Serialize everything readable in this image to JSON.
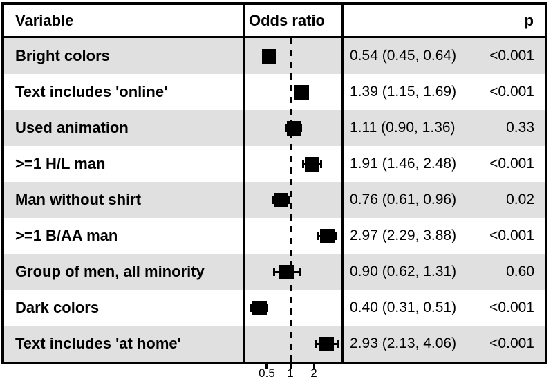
{
  "chart_data": {
    "type": "forest",
    "scale": "log10",
    "columns": {
      "variable": "Variable",
      "plot": "Odds ratio",
      "p": "p"
    },
    "reference_line": 1,
    "x_ticks": [
      "0.5",
      "1",
      "2"
    ],
    "x_tick_values": [
      0.5,
      1,
      2
    ],
    "xlim": [
      0.28,
      4.5
    ],
    "colors": {
      "marker": "#000000",
      "shade": "#e0e0e0",
      "line": "#000000",
      "background": "#ffffff"
    },
    "rows": [
      {
        "label": "Bright colors",
        "or": 0.54,
        "ci_low": 0.45,
        "ci_high": 0.64,
        "estimate_text": "0.54 (0.45, 0.64)",
        "p_text": "<0.001",
        "shaded": true
      },
      {
        "label": "Text includes 'online'",
        "or": 1.39,
        "ci_low": 1.15,
        "ci_high": 1.69,
        "estimate_text": "1.39 (1.15, 1.69)",
        "p_text": "<0.001",
        "shaded": false
      },
      {
        "label": "Used animation",
        "or": 1.11,
        "ci_low": 0.9,
        "ci_high": 1.36,
        "estimate_text": "1.11 (0.90, 1.36)",
        "p_text": "0.33",
        "shaded": true
      },
      {
        "label": ">=1 H/L man",
        "or": 1.91,
        "ci_low": 1.46,
        "ci_high": 2.48,
        "estimate_text": "1.91 (1.46, 2.48)",
        "p_text": "<0.001",
        "shaded": false
      },
      {
        "label": "Man without shirt",
        "or": 0.76,
        "ci_low": 0.61,
        "ci_high": 0.96,
        "estimate_text": "0.76 (0.61, 0.96)",
        "p_text": "0.02",
        "shaded": true
      },
      {
        "label": ">=1 B/AA man",
        "or": 2.97,
        "ci_low": 2.29,
        "ci_high": 3.88,
        "estimate_text": "2.97 (2.29, 3.88)",
        "p_text": "<0.001",
        "shaded": false
      },
      {
        "label": "Group of men, all minority",
        "or": 0.9,
        "ci_low": 0.62,
        "ci_high": 1.31,
        "estimate_text": "0.90 (0.62, 1.31)",
        "p_text": "0.60",
        "shaded": true
      },
      {
        "label": "Dark colors",
        "or": 0.4,
        "ci_low": 0.31,
        "ci_high": 0.51,
        "estimate_text": "0.40 (0.31, 0.51)",
        "p_text": "<0.001",
        "shaded": false
      },
      {
        "label": "Text includes 'at home'",
        "or": 2.93,
        "ci_low": 2.13,
        "ci_high": 4.06,
        "estimate_text": "2.93 (2.13, 4.06)",
        "p_text": "<0.001",
        "shaded": true
      }
    ]
  }
}
